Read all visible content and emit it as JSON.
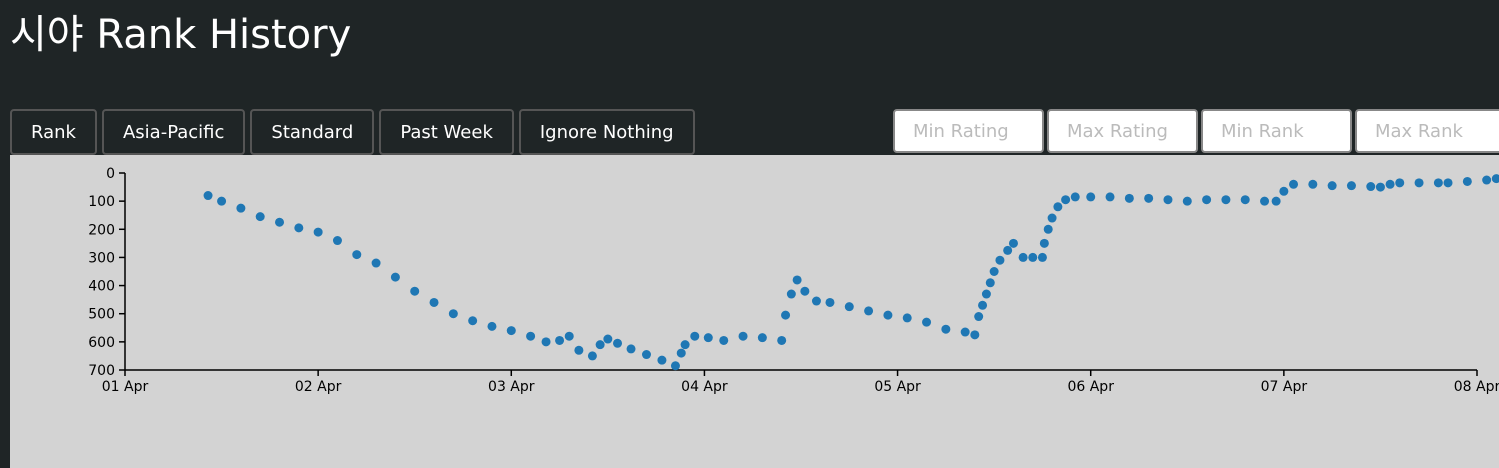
{
  "header": {
    "title": "시야 Rank History"
  },
  "buttons": [
    "Rank",
    "Asia-Pacific",
    "Standard",
    "Past Week",
    "Ignore Nothing"
  ],
  "filters": [
    "Min Rating",
    "Max Rating",
    "Min Rank",
    "Max Rank"
  ],
  "chart_data": {
    "type": "scatter",
    "color": "#1f77b4",
    "y_inverted": true,
    "x": [
      0.43,
      0.5,
      0.6,
      0.7,
      0.8,
      0.9,
      1.0,
      1.1,
      1.2,
      1.3,
      1.4,
      1.5,
      1.6,
      1.7,
      1.8,
      1.9,
      2.0,
      2.1,
      2.18,
      2.25,
      2.3,
      2.35,
      2.42,
      2.46,
      2.5,
      2.55,
      2.62,
      2.7,
      2.78,
      2.85,
      2.88,
      2.9,
      2.95,
      3.02,
      3.1,
      3.2,
      3.3,
      3.4,
      3.42,
      3.45,
      3.48,
      3.52,
      3.58,
      3.65,
      3.75,
      3.85,
      3.95,
      4.05,
      4.15,
      4.25,
      4.35,
      4.4,
      4.42,
      4.44,
      4.46,
      4.48,
      4.5,
      4.53,
      4.57,
      4.6,
      4.65,
      4.7,
      4.75,
      4.76,
      4.78,
      4.8,
      4.83,
      4.87,
      4.92,
      5.0,
      5.1,
      5.2,
      5.3,
      5.4,
      5.5,
      5.6,
      5.7,
      5.8,
      5.9,
      5.96,
      6.0,
      6.05,
      6.15,
      6.25,
      6.35,
      6.45,
      6.5,
      6.55,
      6.6,
      6.7,
      6.8,
      6.85,
      6.95,
      7.05,
      7.1,
      7.15
    ],
    "values": [
      80,
      100,
      125,
      155,
      175,
      195,
      210,
      240,
      290,
      320,
      370,
      420,
      460,
      500,
      525,
      545,
      560,
      580,
      600,
      595,
      580,
      630,
      650,
      610,
      590,
      605,
      625,
      645,
      665,
      685,
      640,
      610,
      580,
      585,
      595,
      580,
      585,
      595,
      505,
      430,
      380,
      420,
      455,
      460,
      475,
      490,
      505,
      515,
      530,
      555,
      565,
      575,
      510,
      470,
      430,
      390,
      350,
      310,
      275,
      250,
      300,
      300,
      300,
      250,
      200,
      160,
      120,
      95,
      85,
      85,
      85,
      90,
      90,
      95,
      100,
      95,
      95,
      95,
      100,
      100,
      65,
      40,
      40,
      45,
      45,
      48,
      50,
      40,
      35,
      35,
      35,
      35,
      30,
      25,
      20,
      20
    ],
    "xlim": [
      0,
      7
    ],
    "xticks": [
      {
        "value": 0,
        "label": "01 Apr"
      },
      {
        "value": 1,
        "label": "02 Apr"
      },
      {
        "value": 2,
        "label": "03 Apr"
      },
      {
        "value": 3,
        "label": "04 Apr"
      },
      {
        "value": 4,
        "label": "05 Apr"
      },
      {
        "value": 5,
        "label": "06 Apr"
      },
      {
        "value": 6,
        "label": "07 Apr"
      },
      {
        "value": 7,
        "label": "08 Apr"
      }
    ],
    "ylim": [
      0,
      700
    ],
    "yticks": [
      0,
      100,
      200,
      300,
      400,
      500,
      600,
      700
    ]
  }
}
